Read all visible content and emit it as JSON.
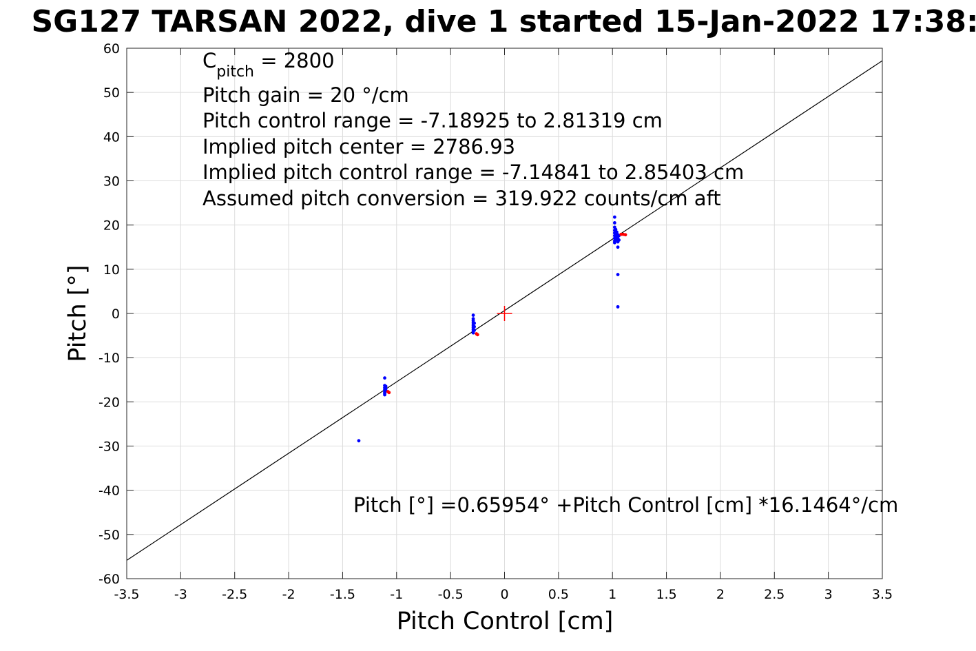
{
  "chart_data": {
    "type": "scatter",
    "title": "SG127 TARSAN 2022, dive 1 started 15-Jan-2022 17:38:",
    "xlabel": "Pitch Control [cm]",
    "ylabel": "Pitch [°]",
    "xlim": [
      -3.5,
      3.5
    ],
    "ylim": [
      -60,
      60
    ],
    "xticks": [
      -3.5,
      -3,
      -2.5,
      -2,
      -1.5,
      -1,
      -0.5,
      0,
      0.5,
      1,
      1.5,
      2,
      2.5,
      3,
      3.5
    ],
    "xtick_labels": [
      "-3.5",
      "-3",
      "-2.5",
      "-2",
      "-1.5",
      "-1",
      "-0.5",
      "0",
      "0.5",
      "1",
      "1.5",
      "2",
      "2.5",
      "3",
      "3.5"
    ],
    "yticks": [
      -60,
      -50,
      -40,
      -30,
      -20,
      -10,
      0,
      10,
      20,
      30,
      40,
      50,
      60
    ],
    "ytick_labels": [
      "-60",
      "-50",
      "-40",
      "-30",
      "-20",
      "-10",
      "0",
      "10",
      "20",
      "30",
      "40",
      "50",
      "60"
    ],
    "grid": true,
    "annotations": {
      "cpitch_base": "C",
      "cpitch_sub": "pitch",
      "cpitch_rest": " = 2800",
      "lines": [
        "Pitch gain = 20 °/cm",
        "Pitch control range = -7.18925 to 2.81319 cm",
        "Implied pitch center = 2786.93",
        "Implied pitch control range = -7.14841 to 2.85403 cm",
        "Assumed pitch conversion = 319.922 counts/cm aft"
      ],
      "fit_equation": "Pitch [°] =0.65954° +Pitch Control [cm] *16.1464°/cm"
    },
    "fit_line": {
      "intercept": 0.65954,
      "slope": 16.1464,
      "color": "#000000"
    },
    "center_marker": {
      "x": 0,
      "y": 0,
      "color": "#ff0000"
    },
    "series": [
      {
        "color": "#0000ff",
        "points": [
          [
            -1.35,
            -28.8
          ],
          [
            -1.11,
            -14.6
          ],
          [
            -1.11,
            -16.3
          ],
          [
            -1.11,
            -16.8
          ],
          [
            -1.11,
            -17.2
          ],
          [
            -1.11,
            -17.5
          ],
          [
            -1.11,
            -17.8
          ],
          [
            -1.11,
            -18.1
          ],
          [
            -1.11,
            -18.4
          ],
          [
            -1.1,
            -16.5
          ],
          [
            -1.1,
            -17.0
          ],
          [
            -1.1,
            -17.4
          ],
          [
            -0.29,
            -0.4
          ],
          [
            -0.29,
            -1.2
          ],
          [
            -0.29,
            -1.6
          ],
          [
            -0.29,
            -2.0
          ],
          [
            -0.29,
            -2.4
          ],
          [
            -0.29,
            -2.8
          ],
          [
            -0.29,
            -3.2
          ],
          [
            -0.29,
            -3.6
          ],
          [
            -0.29,
            -4.0
          ],
          [
            -0.29,
            -4.4
          ],
          [
            -0.28,
            -2.2
          ],
          [
            -0.28,
            -3.0
          ],
          [
            -0.28,
            -3.8
          ],
          [
            1.02,
            21.8
          ],
          [
            1.02,
            20.5
          ],
          [
            1.02,
            19.5
          ],
          [
            1.02,
            18.8
          ],
          [
            1.02,
            18.2
          ],
          [
            1.02,
            17.6
          ],
          [
            1.02,
            17.0
          ],
          [
            1.02,
            16.4
          ],
          [
            1.02,
            16.0
          ],
          [
            1.03,
            19.0
          ],
          [
            1.03,
            18.0
          ],
          [
            1.03,
            17.2
          ],
          [
            1.03,
            16.6
          ],
          [
            1.04,
            18.4
          ],
          [
            1.04,
            17.4
          ],
          [
            1.04,
            16.8
          ],
          [
            1.05,
            17.8
          ],
          [
            1.05,
            17.0
          ],
          [
            1.05,
            16.2
          ],
          [
            1.05,
            15.0
          ],
          [
            1.05,
            8.8
          ],
          [
            1.05,
            1.5
          ],
          [
            1.06,
            17.6
          ],
          [
            1.06,
            16.6
          ]
        ]
      },
      {
        "color": "#ff0000",
        "points": [
          [
            -1.07,
            -17.9
          ],
          [
            -1.08,
            -17.7
          ],
          [
            -0.25,
            -4.8
          ],
          [
            -0.26,
            -4.6
          ],
          [
            1.08,
            17.9
          ],
          [
            1.1,
            17.9
          ],
          [
            1.12,
            17.8
          ]
        ]
      }
    ]
  }
}
